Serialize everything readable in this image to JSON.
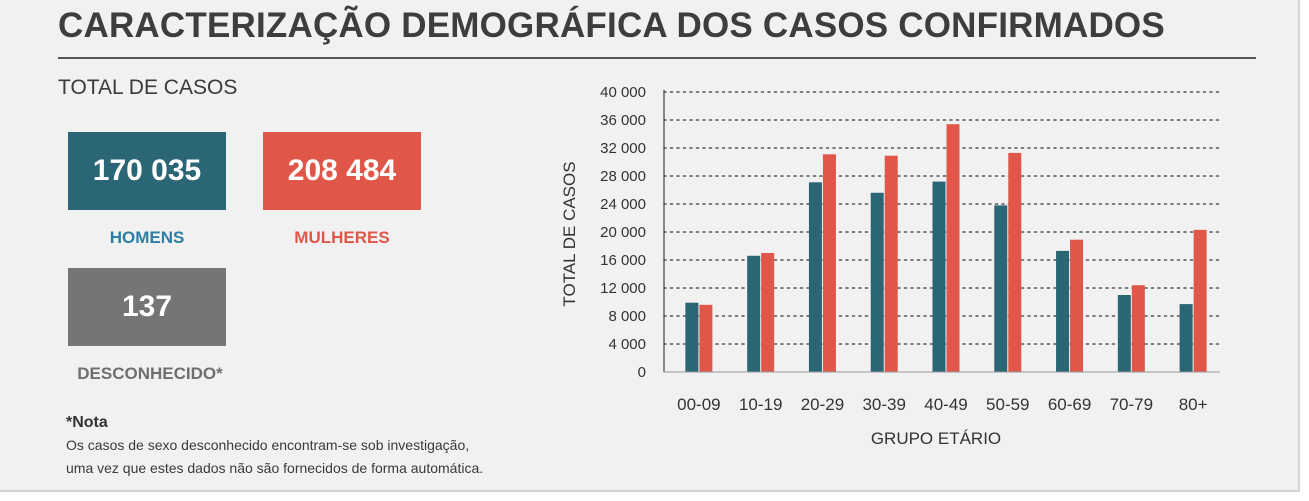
{
  "title": "CARACTERIZAÇÃO DEMOGRÁFICA DOS CASOS CONFIRMADOS",
  "total_label": "TOTAL DE CASOS",
  "stats": {
    "men": {
      "value": "170 035",
      "label": "HOMENS"
    },
    "women": {
      "value": "208 484",
      "label": "MULHERES"
    },
    "unknown": {
      "value": "137",
      "label": "DESCONHECIDO*"
    }
  },
  "note": {
    "title": "*Nota",
    "line1": "Os casos de sexo desconhecido encontram-se sob investigação,",
    "line2": "uma vez que estes dados não são fornecidos de forma automática."
  },
  "colors": {
    "men": "#2a6676",
    "women": "#e0574a",
    "unknown": "#757575",
    "men_label": "#2b7fa3",
    "women_label": "#e0574a",
    "unknown_label": "#6f6f6f"
  },
  "chart_data": {
    "type": "bar",
    "categories": [
      "00-09",
      "10-19",
      "20-29",
      "30-39",
      "40-49",
      "50-59",
      "60-69",
      "70-79",
      "80+"
    ],
    "series": [
      {
        "name": "HOMENS",
        "values": [
          9900,
          16600,
          27100,
          25600,
          27200,
          23800,
          17300,
          11000,
          9700
        ]
      },
      {
        "name": "MULHERES",
        "values": [
          9600,
          17000,
          31100,
          30900,
          35400,
          31300,
          18900,
          12400,
          20300
        ]
      }
    ],
    "xlabel": "GRUPO ETÁRIO",
    "ylabel": "TOTAL DE CASOS",
    "ylim": [
      0,
      40000
    ],
    "yticks": [
      0,
      4000,
      8000,
      12000,
      16000,
      20000,
      24000,
      28000,
      32000,
      36000,
      40000
    ],
    "ytick_labels": [
      "0",
      "4 000",
      "8 000",
      "12 000",
      "16 000",
      "20 000",
      "24 000",
      "28 000",
      "32 000",
      "36 000",
      "40 000"
    ],
    "grid": true,
    "legend": "none"
  }
}
